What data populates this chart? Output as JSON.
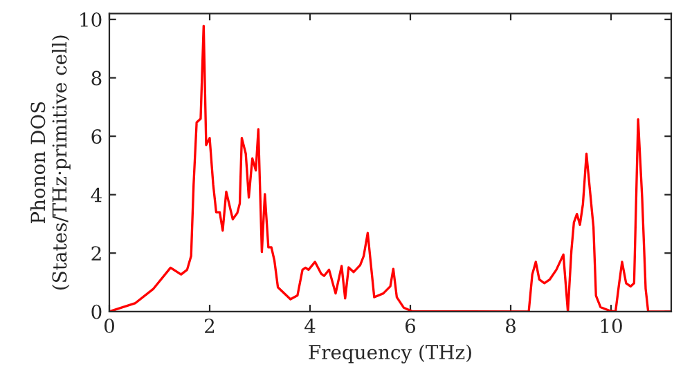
{
  "chart_data": {
    "type": "line",
    "xlabel": "Frequency (THz)",
    "ylabel": "Phonon DOS\n(States/THz·primitive cell)",
    "x": [
      0,
      0.52,
      0.88,
      1.22,
      1.43,
      1.55,
      1.63,
      1.68,
      1.74,
      1.82,
      1.88,
      1.93,
      2.0,
      2.07,
      2.13,
      2.2,
      2.26,
      2.33,
      2.46,
      2.55,
      2.6,
      2.64,
      2.72,
      2.78,
      2.85,
      2.92,
      2.97,
      3.04,
      3.1,
      3.17,
      3.23,
      3.29,
      3.36,
      3.61,
      3.75,
      3.85,
      3.91,
      3.97,
      4.1,
      4.22,
      4.28,
      4.38,
      4.51,
      4.63,
      4.7,
      4.77,
      4.87,
      5.0,
      5.07,
      5.15,
      5.28,
      5.46,
      5.6,
      5.66,
      5.73,
      5.87,
      6.03,
      8.36,
      8.43,
      8.5,
      8.57,
      8.67,
      8.78,
      8.91,
      9.05,
      9.14,
      9.21,
      9.26,
      9.32,
      9.38,
      9.44,
      9.51,
      9.65,
      9.7,
      9.79,
      9.97,
      10.09,
      10.16,
      10.22,
      10.3,
      10.39,
      10.46,
      10.54,
      10.62,
      10.69,
      10.74,
      11.2
    ],
    "series": [
      {
        "color": "#ff0000",
        "values": [
          0,
          0.29,
          0.78,
          1.5,
          1.27,
          1.43,
          1.9,
          4.35,
          6.47,
          6.6,
          9.78,
          5.7,
          5.94,
          4.35,
          3.4,
          3.4,
          2.77,
          4.1,
          3.16,
          3.37,
          3.7,
          5.94,
          5.4,
          3.9,
          5.24,
          4.83,
          6.24,
          2.04,
          4.02,
          2.2,
          2.2,
          1.75,
          0.83,
          0.42,
          0.55,
          1.43,
          1.5,
          1.43,
          1.7,
          1.3,
          1.22,
          1.43,
          0.62,
          1.56,
          0.45,
          1.51,
          1.35,
          1.59,
          1.9,
          2.69,
          0.49,
          0.62,
          0.86,
          1.46,
          0.49,
          0.13,
          0.01,
          0,
          1.27,
          1.7,
          1.1,
          0.97,
          1.1,
          1.43,
          1.95,
          0,
          2.08,
          3.05,
          3.34,
          2.97,
          3.68,
          5.4,
          2.89,
          0.54,
          0.15,
          0.03,
          0,
          0.94,
          1.7,
          0.97,
          0.86,
          0.97,
          6.58,
          3.9,
          0.78,
          0,
          0
        ]
      }
    ],
    "xlim": [
      0,
      11.2
    ],
    "ylim": [
      0,
      10.2
    ],
    "xticks": [
      0,
      2,
      4,
      6,
      8,
      10
    ],
    "yticks": [
      0,
      2,
      4,
      6,
      8,
      10
    ],
    "grid": false,
    "legend": false,
    "marker": "none",
    "line_style": "solid"
  }
}
